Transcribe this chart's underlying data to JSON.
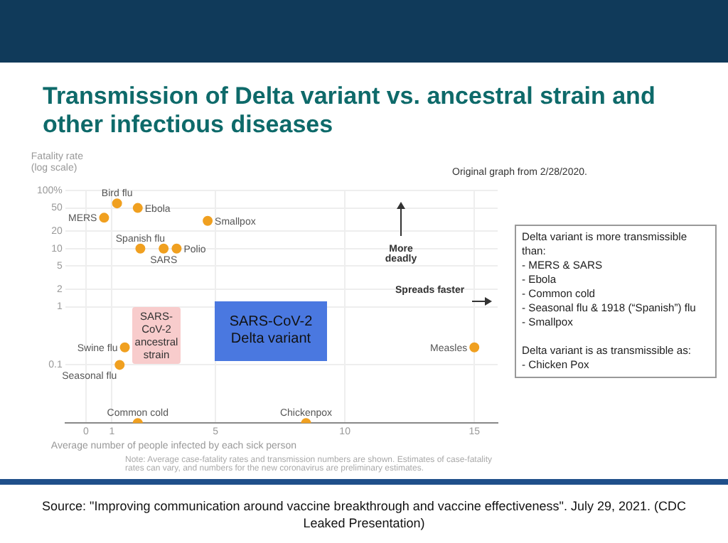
{
  "chart_data": {
    "type": "scatter",
    "title": "Transmission of Delta variant vs. ancestral strain and other infectious diseases",
    "xlabel": "Average number of people infected by each sick person",
    "ylabel": "Fatality rate (log scale)",
    "log": "y",
    "grid": true,
    "legend": false,
    "marker": "circle",
    "xlim": [
      -0.8,
      15.9
    ],
    "xticks": [
      0,
      1,
      5,
      10,
      15
    ],
    "ylim": [
      0.01,
      100
    ],
    "yticks": [
      {
        "value": 100,
        "label": "100%"
      },
      50,
      20,
      10,
      5,
      2,
      1,
      0.1
    ],
    "series": [
      {
        "name": "MERS",
        "color": "#f0a020",
        "x": [
          0.7
        ],
        "values": [
          34
        ]
      },
      {
        "name": "Bird flu",
        "color": "#f0a020",
        "x": [
          1.2
        ],
        "values": [
          60
        ]
      },
      {
        "name": "Ebola",
        "color": "#f0a020",
        "x": [
          2.0
        ],
        "values": [
          50
        ]
      },
      {
        "name": "Smallpox",
        "color": "#f0a020",
        "x": [
          4.7
        ],
        "values": [
          30
        ]
      },
      {
        "name": "Spanish flu",
        "color": "#f0a020",
        "x": [
          2.1
        ],
        "values": [
          10
        ]
      },
      {
        "name": "SARS",
        "color": "#f0a020",
        "x": [
          3.0
        ],
        "values": [
          10
        ]
      },
      {
        "name": "Polio",
        "color": "#f0a020",
        "x": [
          3.5
        ],
        "values": [
          10
        ]
      },
      {
        "name": "Swine flu",
        "color": "#f0a020",
        "x": [
          1.5
        ],
        "values": [
          0.2
        ]
      },
      {
        "name": "Seasonal flu",
        "color": "#f0a020",
        "x": [
          1.3
        ],
        "values": [
          0.1
        ]
      },
      {
        "name": "Common cold",
        "color": "#f0a020",
        "x": [
          2.0
        ],
        "values": [
          0.01
        ]
      },
      {
        "name": "Chickenpox",
        "color": "#f0a020",
        "x": [
          8.5
        ],
        "values": [
          0.01
        ]
      },
      {
        "name": "Measles",
        "color": "#f0a020",
        "x": [
          15
        ],
        "values": [
          0.2
        ]
      }
    ],
    "annotations": [
      "SARS-CoV-2 ancestral strain",
      "SARS-CoV-2 Delta variant",
      "More deadly",
      "Spreads faster",
      "Note: Average case-fatality rates and transmission numbers are shown. Estimates of case-fatality rates can vary, and numbers for the new coronavirus are preliminary estimates.",
      "Original graph from 2/28/2020.",
      "Delta variant is more transmissible than:\n- MERS & SARS\n- Ebola\n- Common cold\n- Seasonal flu & 1918 (“Spanish”) flu\n- Smallpox\n\nDelta variant is as transmissible as:\n- Chicken Pox",
      "Source: \"Improving communication around vaccine breakthrough and vaccine effectiveness\". July 29, 2021. (CDC Leaked Presentation)"
    ]
  }
}
